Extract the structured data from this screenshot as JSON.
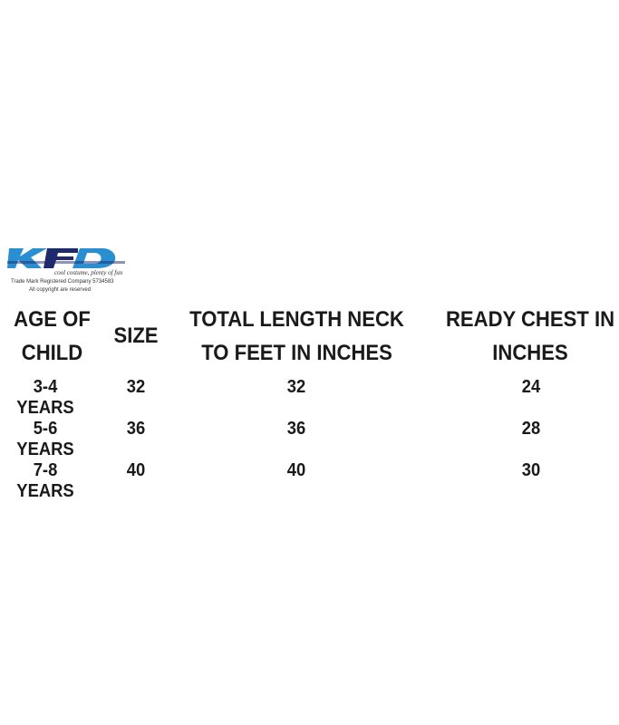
{
  "logo": {
    "text": "KFD",
    "tagline": "cool costume, plenty of fun",
    "trademark": "Trade Mark Registered Company 5734583",
    "copyright": "All copyright are reserved",
    "colors": [
      "#2a8fd0",
      "#1f2a6e"
    ]
  },
  "table": {
    "headers": [
      "AGE OF CHILD",
      "SIZE",
      "TOTAL LENGTH NECK TO FEET IN INCHES",
      "READY CHEST IN INCHES"
    ],
    "rows": [
      [
        "3-4 YEARS",
        "32",
        "32",
        "24"
      ],
      [
        "5-6 YEARS",
        "36",
        "36",
        "28"
      ],
      [
        "7-8 YEARS",
        "40",
        "40",
        "30"
      ]
    ]
  }
}
